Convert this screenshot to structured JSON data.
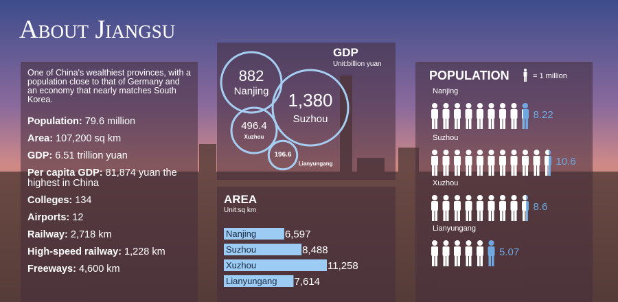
{
  "title": "About Jiangsu",
  "intro": "One of China's wealthiest provinces, with a population close to that of Germany and an economy that nearly matches South Korea.",
  "facts": [
    {
      "label": "Population:",
      "value": "79.6 million"
    },
    {
      "label": "Area:",
      "value": "107,200 sq km"
    },
    {
      "label": "GDP:",
      "value": "6.51 trillion yuan"
    },
    {
      "label": "Per capita GDP:",
      "value": "81,874 yuan the highest in China"
    },
    {
      "label": "Colleges:",
      "value": "134"
    },
    {
      "label": "Airports:",
      "value": "12"
    },
    {
      "label": "Railway:",
      "value": "2,718 km"
    },
    {
      "label": "High-speed railway:",
      "value": "1,228 km"
    },
    {
      "label": "Freeways:",
      "value": "4,600 km"
    }
  ],
  "chart_data": [
    {
      "type": "bubble",
      "title": "GDP",
      "subtitle": "Unit:billion yuan",
      "color": "#a6cdf2",
      "categories": [
        "Nanjing",
        "Suzhou",
        "Xuzhou",
        "Lianyungang"
      ],
      "values": [
        882,
        1380,
        496.4,
        196.6
      ],
      "value_labels": [
        "882",
        "1,380",
        "496.4",
        "196.6"
      ]
    },
    {
      "type": "bar",
      "title": "AREA",
      "subtitle": "Unit:sq km",
      "color": "#9ccbf3",
      "categories": [
        "Nanjing",
        "Suzhou",
        "Xuzhou",
        "Lianyungang"
      ],
      "values": [
        6597,
        8488,
        11258,
        7614
      ],
      "value_labels": [
        "6,597",
        "8,488",
        "11,258",
        "7,614"
      ]
    },
    {
      "type": "pictogram",
      "title": "POPULATION",
      "legend": "= 1 million",
      "color": "#6fa8e0",
      "categories": [
        "Nanjing",
        "Suzhou",
        "Xuzhou",
        "Lianyungang"
      ],
      "values": [
        8.22,
        10.6,
        8.6,
        5.07
      ]
    }
  ]
}
